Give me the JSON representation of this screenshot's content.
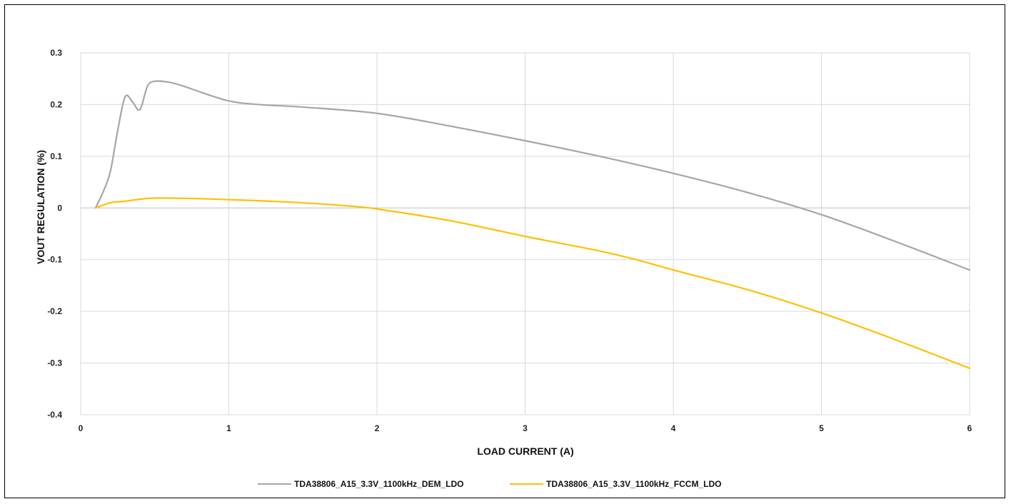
{
  "chart_data": {
    "type": "line",
    "title": "",
    "xlabel": "LOAD CURRENT (A)",
    "ylabel": "VOUT REGULATION (%)",
    "xlim": [
      0,
      6
    ],
    "ylim": [
      -0.4,
      0.3
    ],
    "x_ticks": [
      "0",
      "1",
      "2",
      "3",
      "4",
      "5",
      "6"
    ],
    "y_ticks": [
      "0.3",
      "0.2",
      "0.1",
      "0",
      "-0.1",
      "-0.2",
      "-0.3",
      "-0.4"
    ],
    "grid": true,
    "legend_position": "bottom",
    "series": [
      {
        "name": "TDA38806_A15_3.3V_1100kHz_DEM_LDO",
        "color": "#a6a6a6",
        "x": [
          0.1,
          0.15,
          0.2,
          0.25,
          0.3,
          0.35,
          0.4,
          0.45,
          0.5,
          0.6,
          0.7,
          0.8,
          1.0,
          1.2,
          1.5,
          2.0,
          2.5,
          3.0,
          3.5,
          4.0,
          4.5,
          5.0,
          5.5,
          6.0
        ],
        "y": [
          0.0,
          0.03,
          0.07,
          0.15,
          0.215,
          0.205,
          0.19,
          0.235,
          0.245,
          0.243,
          0.235,
          0.225,
          0.207,
          0.2,
          0.195,
          0.183,
          0.158,
          0.13,
          0.1,
          0.067,
          0.03,
          -0.013,
          -0.065,
          -0.12
        ]
      },
      {
        "name": "TDA38806_A15_3.3V_1100kHz_FCCM_LDO",
        "color": "#ffc000",
        "x": [
          0.1,
          0.2,
          0.3,
          0.4,
          0.5,
          0.6,
          0.8,
          1.0,
          1.2,
          1.5,
          1.8,
          2.0,
          2.5,
          3.0,
          3.5,
          3.75,
          4.0,
          4.5,
          5.0,
          5.5,
          6.0
        ],
        "y": [
          0.0,
          0.01,
          0.013,
          0.017,
          0.019,
          0.019,
          0.018,
          0.016,
          0.014,
          0.01,
          0.004,
          -0.002,
          -0.025,
          -0.055,
          -0.083,
          -0.1,
          -0.12,
          -0.158,
          -0.203,
          -0.255,
          -0.31
        ]
      }
    ]
  }
}
